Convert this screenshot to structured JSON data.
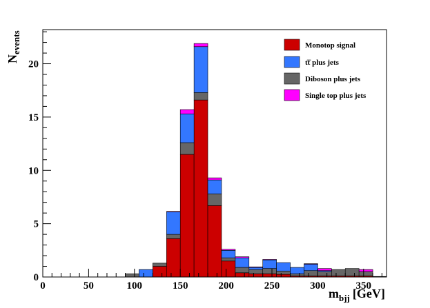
{
  "chart_data": {
    "type": "bar",
    "stacked": true,
    "histogram": true,
    "xlabel_main": "m",
    "xlabel_sub": "bjj",
    "xlabel_unit": "[GeV]",
    "ylabel_main": "N",
    "ylabel_sub": "events",
    "xlim": [
      0,
      375
    ],
    "ylim": [
      0,
      23.2
    ],
    "bin_width": 15,
    "x_ticks": [
      0,
      50,
      100,
      150,
      200,
      250,
      300,
      350
    ],
    "y_ticks": [
      0,
      5,
      10,
      15,
      20
    ],
    "bin_edges": [
      0,
      15,
      30,
      45,
      60,
      75,
      90,
      105,
      120,
      135,
      150,
      165,
      180,
      195,
      210,
      225,
      240,
      255,
      270,
      285,
      300,
      315,
      330,
      345,
      360,
      375
    ],
    "series": [
      {
        "name": "Monotop signal",
        "color": "#cc0000",
        "values": [
          0,
          0,
          0,
          0,
          0,
          0,
          0,
          0,
          1.0,
          3.6,
          11.5,
          16.6,
          6.7,
          1.5,
          0.4,
          0.3,
          0.3,
          0.25,
          0.1,
          0.1,
          0.1,
          0.1,
          0.1,
          0.1,
          0.05
        ]
      },
      {
        "name": "Diboson plus jets",
        "color": "#666666",
        "values": [
          0,
          0,
          0,
          0,
          0,
          0,
          0.3,
          0,
          0.3,
          0.4,
          1.1,
          0.7,
          1.1,
          0.3,
          0.5,
          0.4,
          0.5,
          0.3,
          0.2,
          0.5,
          0.4,
          0.6,
          0.7,
          0.4,
          0
        ]
      },
      {
        "name": "tt̅ plus jets",
        "color": "#3377ff",
        "values": [
          0,
          0,
          0,
          0,
          0,
          0,
          0,
          0.7,
          0,
          2.1,
          2.7,
          4.3,
          1.3,
          0.7,
          0.9,
          0.2,
          0.8,
          0.8,
          0.6,
          0.6,
          0.1,
          0,
          0,
          0,
          0
        ]
      },
      {
        "name": "Single top plus jets",
        "color": "#ff00ff",
        "values": [
          0,
          0,
          0,
          0,
          0,
          0,
          0,
          0,
          0,
          0.05,
          0.4,
          0.3,
          0.2,
          0.1,
          0.1,
          0.05,
          0.05,
          0,
          0,
          0.05,
          0.2,
          0,
          0,
          0.2,
          0
        ]
      }
    ],
    "legend": [
      {
        "label": "Monotop signal",
        "color": "#cc0000"
      },
      {
        "label": "tt̅ plus jets",
        "color": "#3377ff"
      },
      {
        "label": "Diboson plus jets",
        "color": "#666666"
      },
      {
        "label": "Single top plus jets",
        "color": "#ff00ff"
      }
    ],
    "legend_position": "top-right",
    "grid": false
  }
}
